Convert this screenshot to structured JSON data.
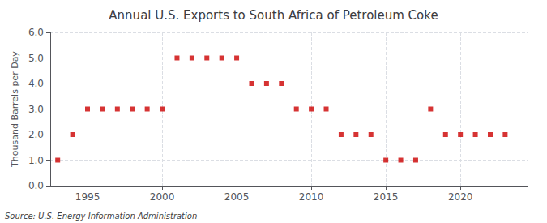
{
  "chart_data": {
    "type": "scatter",
    "title": "Annual U.S. Exports to South Africa of Petroleum Coke",
    "ylabel": "Thousand Barrels per Day",
    "annotations": [
      "Source: U.S. Energy Information Administration"
    ],
    "x": [
      1993,
      1994,
      1995,
      1996,
      1997,
      1998,
      1999,
      2000,
      2001,
      2002,
      2003,
      2004,
      2005,
      2006,
      2007,
      2008,
      2009,
      2010,
      2011,
      2012,
      2013,
      2014,
      2015,
      2016,
      2017,
      2018,
      2019,
      2020,
      2021,
      2022,
      2023
    ],
    "values": [
      1,
      2,
      3,
      3,
      3,
      3,
      3,
      3,
      5,
      5,
      5,
      5,
      5,
      4,
      4,
      4,
      3,
      3,
      3,
      2,
      2,
      2,
      1,
      1,
      1,
      3,
      2,
      2,
      2,
      2,
      2
    ],
    "color": "#cc0000",
    "marker": "square",
    "xlim": [
      1992.5,
      2024.5
    ],
    "xticks": [
      1995,
      2000,
      2005,
      2010,
      2015,
      2020
    ],
    "ylim": [
      0.0,
      6.0
    ],
    "yticks": [
      {
        "value": 0,
        "label": "0.0"
      },
      {
        "value": 1,
        "label": "1.0"
      },
      {
        "value": 2,
        "label": "2.0"
      },
      {
        "value": 3,
        "label": "3.0"
      },
      {
        "value": 4,
        "label": "4.0"
      },
      {
        "value": 5,
        "label": "5.0"
      },
      {
        "value": 6,
        "label": "6.0"
      }
    ],
    "grid": true
  }
}
